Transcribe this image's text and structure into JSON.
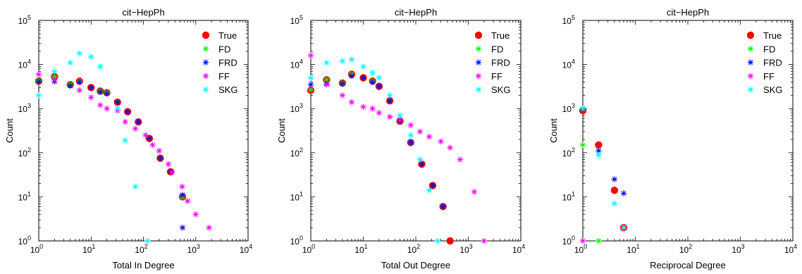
{
  "chart_data": [
    {
      "type": "scatter",
      "title": "cit−HepPh",
      "xlabel": "Total In Degree",
      "ylabel": "Count",
      "xscale": "log",
      "yscale": "log",
      "xlim": [
        1,
        10000
      ],
      "ylim": [
        1,
        100000
      ],
      "xticks": [
        1,
        10,
        100,
        1000,
        10000
      ],
      "yticks": [
        1,
        10,
        100,
        1000,
        10000,
        100000
      ],
      "legend": "top-right",
      "grid": false,
      "series": [
        {
          "name": "True",
          "marker": "circle",
          "color": "#ff0000",
          "x": [
            1,
            2,
            4,
            6,
            10,
            15,
            20,
            32,
            50,
            80,
            130,
            210,
            330,
            560
          ],
          "y": [
            4200,
            5300,
            3500,
            4200,
            3000,
            2500,
            2300,
            1400,
            850,
            500,
            210,
            75,
            37,
            10
          ]
        },
        {
          "name": "FD",
          "marker": "asterisk",
          "color": "#00ff00",
          "x": [
            1,
            2,
            4,
            6,
            10,
            15,
            20,
            32,
            50,
            80,
            130,
            210,
            330,
            560
          ],
          "y": [
            4300,
            5200,
            3500,
            4200,
            3000,
            2500,
            2300,
            1400,
            850,
            500,
            210,
            75,
            37,
            10
          ]
        },
        {
          "name": "FRD",
          "marker": "asterisk",
          "color": "#0000ff",
          "x": [
            1,
            2,
            4,
            6,
            10,
            15,
            20,
            32,
            50,
            80,
            130,
            210,
            330,
            560,
            560
          ],
          "y": [
            4100,
            4100,
            3300,
            4000,
            3000,
            2400,
            2200,
            1400,
            850,
            500,
            210,
            75,
            37,
            11,
            2
          ]
        },
        {
          "name": "FF",
          "marker": "asterisk",
          "color": "#ff00ff",
          "x": [
            1,
            2,
            6,
            10,
            15,
            20,
            32,
            45,
            70,
            110,
            150,
            200,
            300,
            350,
            550,
            700,
            1000,
            1800
          ],
          "y": [
            6000,
            4500,
            2600,
            1800,
            1200,
            1000,
            900,
            500,
            350,
            250,
            150,
            110,
            55,
            36,
            17,
            8,
            4,
            2
          ]
        },
        {
          "name": "SKG",
          "marker": "asterisk",
          "color": "#00ffff",
          "x": [
            1,
            2,
            4,
            6,
            10,
            15,
            32,
            45,
            70,
            120
          ],
          "y": [
            2000,
            7000,
            11000,
            18000,
            15000,
            9000,
            1000,
            190,
            17,
            1
          ]
        }
      ]
    },
    {
      "type": "scatter",
      "title": "cit−HepPh",
      "xlabel": "Total Out Degree",
      "ylabel": "Count",
      "xscale": "log",
      "yscale": "log",
      "xlim": [
        1,
        10000
      ],
      "ylim": [
        1,
        100000
      ],
      "xticks": [
        1,
        10,
        100,
        1000,
        10000
      ],
      "yticks": [
        1,
        10,
        100,
        1000,
        10000,
        100000
      ],
      "legend": "top-right",
      "grid": false,
      "series": [
        {
          "name": "True",
          "marker": "circle",
          "color": "#ff0000",
          "x": [
            1,
            2,
            4,
            6,
            10,
            15,
            20,
            32,
            50,
            80,
            130,
            210,
            330,
            450
          ],
          "y": [
            2600,
            4500,
            3800,
            6000,
            5000,
            4200,
            3200,
            1500,
            520,
            170,
            55,
            18,
            6,
            1
          ]
        },
        {
          "name": "FD",
          "marker": "asterisk",
          "color": "#00ff00",
          "x": [
            1,
            2,
            4,
            6,
            10,
            15,
            20,
            32,
            50,
            80,
            130,
            210,
            330
          ],
          "y": [
            2700,
            4500,
            3800,
            6000,
            5000,
            4200,
            3200,
            1500,
            520,
            170,
            55,
            18,
            6
          ]
        },
        {
          "name": "FRD",
          "marker": "asterisk",
          "color": "#0000ff",
          "x": [
            1,
            2,
            4,
            6,
            10,
            15,
            20,
            32,
            50,
            80,
            130,
            210,
            330
          ],
          "y": [
            3500,
            3600,
            3700,
            5500,
            5000,
            4000,
            3200,
            1500,
            520,
            170,
            55,
            18,
            6
          ]
        },
        {
          "name": "FF",
          "marker": "asterisk",
          "color": "#ff00ff",
          "x": [
            1,
            2,
            4,
            6,
            10,
            15,
            20,
            32,
            50,
            80,
            120,
            180,
            300,
            450,
            700,
            1300,
            2000
          ],
          "y": [
            16000,
            3500,
            2000,
            1400,
            1100,
            1000,
            800,
            650,
            550,
            420,
            300,
            230,
            180,
            130,
            70,
            13,
            1
          ]
        },
        {
          "name": "SKG",
          "marker": "asterisk",
          "color": "#00ffff",
          "x": [
            1,
            2,
            4,
            6,
            10,
            15,
            20,
            32,
            50,
            80,
            120,
            180,
            260
          ],
          "y": [
            5000,
            11000,
            12000,
            13000,
            9000,
            6500,
            5000,
            2000,
            700,
            250,
            70,
            14,
            1
          ]
        }
      ]
    },
    {
      "type": "scatter",
      "title": "cit−HepPh",
      "xlabel": "Reciprocal Degree",
      "ylabel": "Count",
      "xscale": "log",
      "yscale": "log",
      "xlim": [
        1,
        10000
      ],
      "ylim": [
        1,
        100000
      ],
      "xticks": [
        1,
        10,
        100,
        1000,
        10000
      ],
      "yticks": [
        1,
        10,
        100,
        1000,
        10000,
        100000
      ],
      "legend": "top-right",
      "grid": false,
      "series": [
        {
          "name": "True",
          "marker": "circle",
          "color": "#ff0000",
          "x": [
            1,
            2,
            4,
            6
          ],
          "y": [
            900,
            150,
            14,
            2
          ]
        },
        {
          "name": "FD",
          "marker": "asterisk",
          "color": "#00ff00",
          "x": [
            1,
            2,
            6
          ],
          "y": [
            150,
            1,
            2
          ]
        },
        {
          "name": "FRD",
          "marker": "asterisk",
          "color": "#0000ff",
          "x": [
            1,
            2,
            4,
            6
          ],
          "y": [
            1000,
            110,
            25,
            12
          ]
        },
        {
          "name": "FF",
          "marker": "asterisk",
          "color": "#ff00ff",
          "x": [
            1,
            6
          ],
          "y": [
            1,
            2
          ]
        },
        {
          "name": "SKG",
          "marker": "asterisk",
          "color": "#00ffff",
          "x": [
            1,
            2,
            4,
            6
          ],
          "y": [
            1000,
            90,
            7,
            2
          ]
        }
      ]
    }
  ]
}
